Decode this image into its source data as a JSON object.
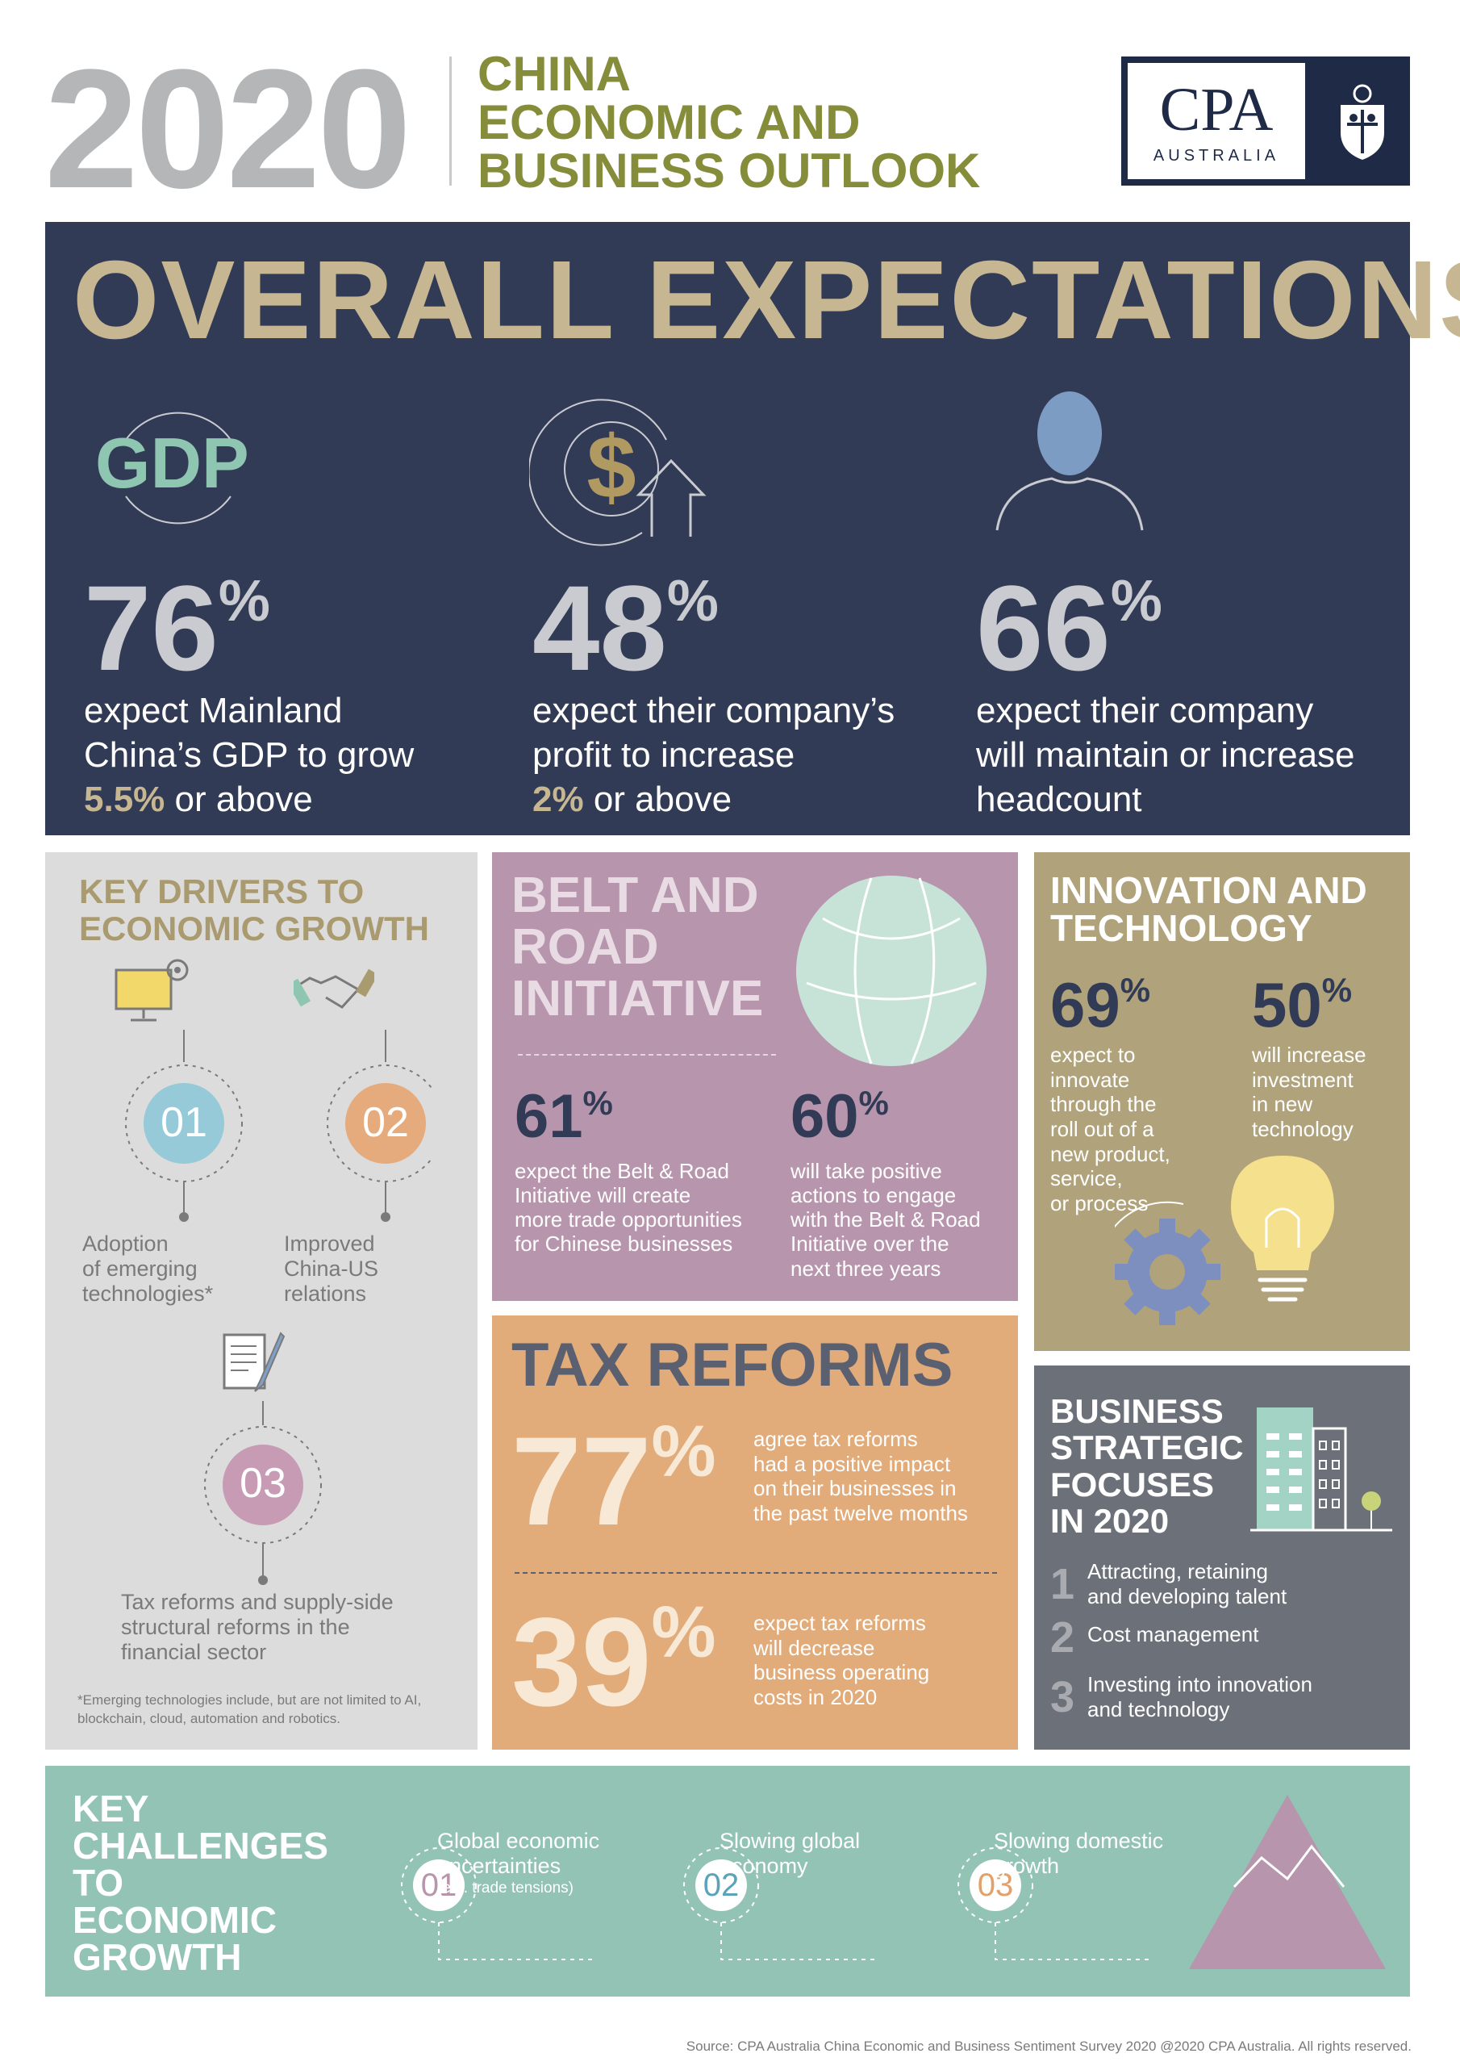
{
  "header": {
    "year": "2020",
    "title_lines": [
      "CHINA",
      "ECONOMIC AND",
      "BUSINESS OUTLOOK"
    ],
    "logo_text": "CPA",
    "logo_subtext": "AUSTRALIA"
  },
  "overall": {
    "title": "OVERALL EXPECTATIONS",
    "gdp_icon_text": "GDP",
    "stats": [
      {
        "value": "76",
        "unit": "%",
        "line1": "expect Mainland",
        "line2": "China’s GDP to grow",
        "highlight": "5.5%",
        "line3_rest": " or above"
      },
      {
        "value": "48",
        "unit": "%",
        "line1": "expect their company’s",
        "line2": "profit to increase",
        "highlight": "2%",
        "line3_rest": " or above"
      },
      {
        "value": "66",
        "unit": "%",
        "line1": "expect their company",
        "line2": "will maintain or increase",
        "highlight": "",
        "line3_rest": "headcount"
      }
    ]
  },
  "drivers": {
    "title_lines": [
      "KEY DRIVERS TO",
      "ECONOMIC GROWTH"
    ],
    "items": [
      {
        "num": "01",
        "label_lines": [
          "Adoption",
          "of emerging",
          "technologies*"
        ]
      },
      {
        "num": "02",
        "label_lines": [
          "Improved",
          "China-US",
          "relations"
        ]
      },
      {
        "num": "03",
        "label_lines": [
          "Tax reforms and supply-side",
          "structural reforms in the",
          "financial sector"
        ]
      }
    ],
    "note_lines": [
      "*Emerging technologies include, but are not limited to AI,",
      "blockchain, cloud, automation and robotics."
    ]
  },
  "belt": {
    "title_lines": [
      "BELT AND",
      "ROAD",
      "INITIATIVE"
    ],
    "stats": [
      {
        "value": "61",
        "unit": "%",
        "lines": [
          "expect the Belt & Road",
          "Initiative will create",
          "more trade opportunities",
          "for Chinese businesses"
        ]
      },
      {
        "value": "60",
        "unit": "%",
        "lines": [
          "will take positive",
          "actions to engage",
          "with the Belt & Road",
          "Initiative over the",
          "next three years"
        ]
      }
    ]
  },
  "innovation": {
    "title_lines": [
      "INNOVATION AND",
      "TECHNOLOGY"
    ],
    "stats": [
      {
        "value": "69",
        "unit": "%",
        "lines": [
          "expect to",
          "innovate",
          "through the",
          "roll out of a",
          "new product,",
          "service,",
          "or process"
        ]
      },
      {
        "value": "50",
        "unit": "%",
        "lines": [
          "will increase",
          "investment",
          "in new",
          "technology"
        ]
      }
    ]
  },
  "tax": {
    "title": "TAX REFORMS",
    "stats": [
      {
        "value": "77",
        "unit": "%",
        "lines": [
          "agree tax reforms",
          "had a positive impact",
          "on their businesses in",
          "the past twelve months"
        ]
      },
      {
        "value": "39",
        "unit": "%",
        "lines": [
          "expect tax reforms",
          "will decrease",
          "business operating",
          "costs in 2020"
        ]
      }
    ]
  },
  "business": {
    "title_lines": [
      "BUSINESS",
      "STRATEGIC",
      "FOCUSES",
      "IN 2020"
    ],
    "items": [
      {
        "num": "1",
        "lines": [
          "Attracting, retaining",
          "and developing talent"
        ]
      },
      {
        "num": "2",
        "lines": [
          "Cost management"
        ]
      },
      {
        "num": "3",
        "lines": [
          "Investing into innovation",
          "and technology"
        ]
      }
    ]
  },
  "challenges": {
    "title_lines": [
      "KEY",
      "CHALLENGES",
      "TO",
      "ECONOMIC",
      "GROWTH"
    ],
    "items": [
      {
        "num": "01",
        "lines": [
          "Global economic",
          "uncertainties"
        ],
        "sub": "(e.g. trade tensions)",
        "color": "#b795ac"
      },
      {
        "num": "02",
        "lines": [
          "Slowing global",
          "economy"
        ],
        "sub": "",
        "color": "#5aa3b8"
      },
      {
        "num": "03",
        "lines": [
          "Slowing domestic",
          "growth"
        ],
        "sub": "",
        "color": "#e2a06a"
      }
    ]
  },
  "source": "Source: CPA Australia China Economic and Business Sentiment Survey 2020 @2020 CPA Australia. All rights reserved.",
  "colors": {
    "navy": "#323b56",
    "gold": "#c6b792",
    "olive": "#858d3a",
    "mauve": "#b795ac",
    "orange": "#e2ab7a",
    "teal": "#93c3b4",
    "slate": "#6c7079"
  }
}
